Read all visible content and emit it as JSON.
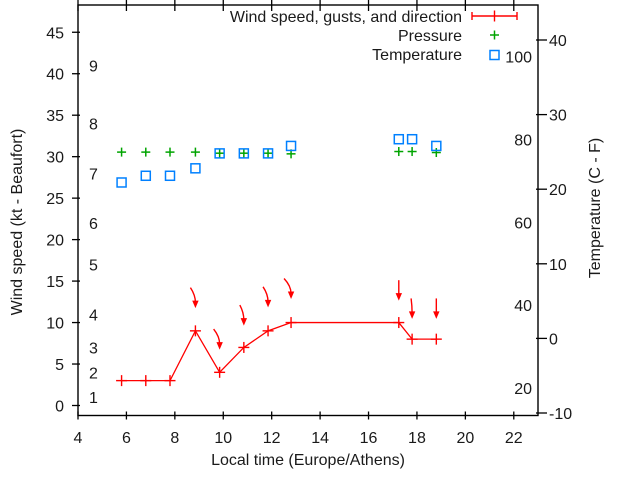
{
  "figure": {
    "background": "#ffffff",
    "border_color": "#000000",
    "text_color": "#1a1a1a"
  },
  "legend": {
    "entries": [
      {
        "label": "Wind speed, gusts, and direction",
        "marker": "line-with-plus-and-caps",
        "color": "#ff0000"
      },
      {
        "label": "Pressure",
        "marker": "plus",
        "color": "#00a400"
      },
      {
        "label": "Temperature",
        "marker": "open-square",
        "color": "#0080ff"
      }
    ]
  },
  "chart_data": {
    "type": "line",
    "xlabel": "Local time (Europe/Athens)",
    "x_range": [
      4,
      23
    ],
    "x_ticks": [
      4,
      6,
      8,
      10,
      12,
      14,
      16,
      18,
      20,
      22
    ],
    "x": [
      5.8,
      6.8,
      7.8,
      8.85,
      9.85,
      10.85,
      11.85,
      12.8,
      17.25,
      17.8,
      18.8
    ],
    "y_left": {
      "label": "Wind speed (kt - Beaufort)",
      "ticks_kt": [
        0,
        5,
        10,
        15,
        20,
        25,
        30,
        35,
        40,
        45
      ],
      "beaufort_scale": [
        {
          "bft": "1",
          "kt": 1
        },
        {
          "bft": "2",
          "kt": 4
        },
        {
          "bft": "3",
          "kt": 7
        },
        {
          "bft": "4",
          "kt": 11
        },
        {
          "bft": "5",
          "kt": 17
        },
        {
          "bft": "6",
          "kt": 22
        },
        {
          "bft": "7",
          "kt": 28
        },
        {
          "bft": "8",
          "kt": 34
        },
        {
          "bft": "9",
          "kt": 41
        }
      ]
    },
    "y_right": {
      "label": "Temperature (C - F)",
      "ticks_celsius": [
        -10,
        0,
        10,
        20,
        30,
        40
      ],
      "ticks_fahrenheit": [
        20,
        40,
        60,
        80,
        100
      ]
    },
    "series": [
      {
        "name": "Wind speed, gusts, and direction",
        "render": "line+plus",
        "color": "#ff0000",
        "axis": "kt",
        "values": [
          3,
          3,
          3,
          9,
          4,
          7,
          9,
          10,
          10,
          8,
          8
        ]
      },
      {
        "name": "Wind gust / direction arrows",
        "render": "arrow",
        "color": "#ff0000",
        "axis": "kt",
        "arrow_tip_kt": [
          null,
          null,
          null,
          12.4,
          7.4,
          10.3,
          12.5,
          13.5,
          13.3,
          11.1,
          11.1
        ],
        "arrow_tail_dx": [
          null,
          null,
          null,
          -5,
          -6,
          -4,
          -5,
          -7,
          0,
          -1,
          0
        ]
      },
      {
        "name": "Pressure",
        "render": "plus",
        "color": "#00a400",
        "axis": "kt",
        "values": [
          30.55,
          30.55,
          30.55,
          30.55,
          30.42,
          30.42,
          30.42,
          30.34,
          30.62,
          30.62,
          30.5
        ]
      },
      {
        "name": "Temperature",
        "render": "open-square",
        "color": "#0080ff",
        "axis": "celsius",
        "values": [
          20.9,
          21.8,
          21.8,
          22.8,
          24.8,
          24.8,
          24.8,
          25.8,
          26.7,
          26.7,
          25.8
        ]
      }
    ]
  }
}
